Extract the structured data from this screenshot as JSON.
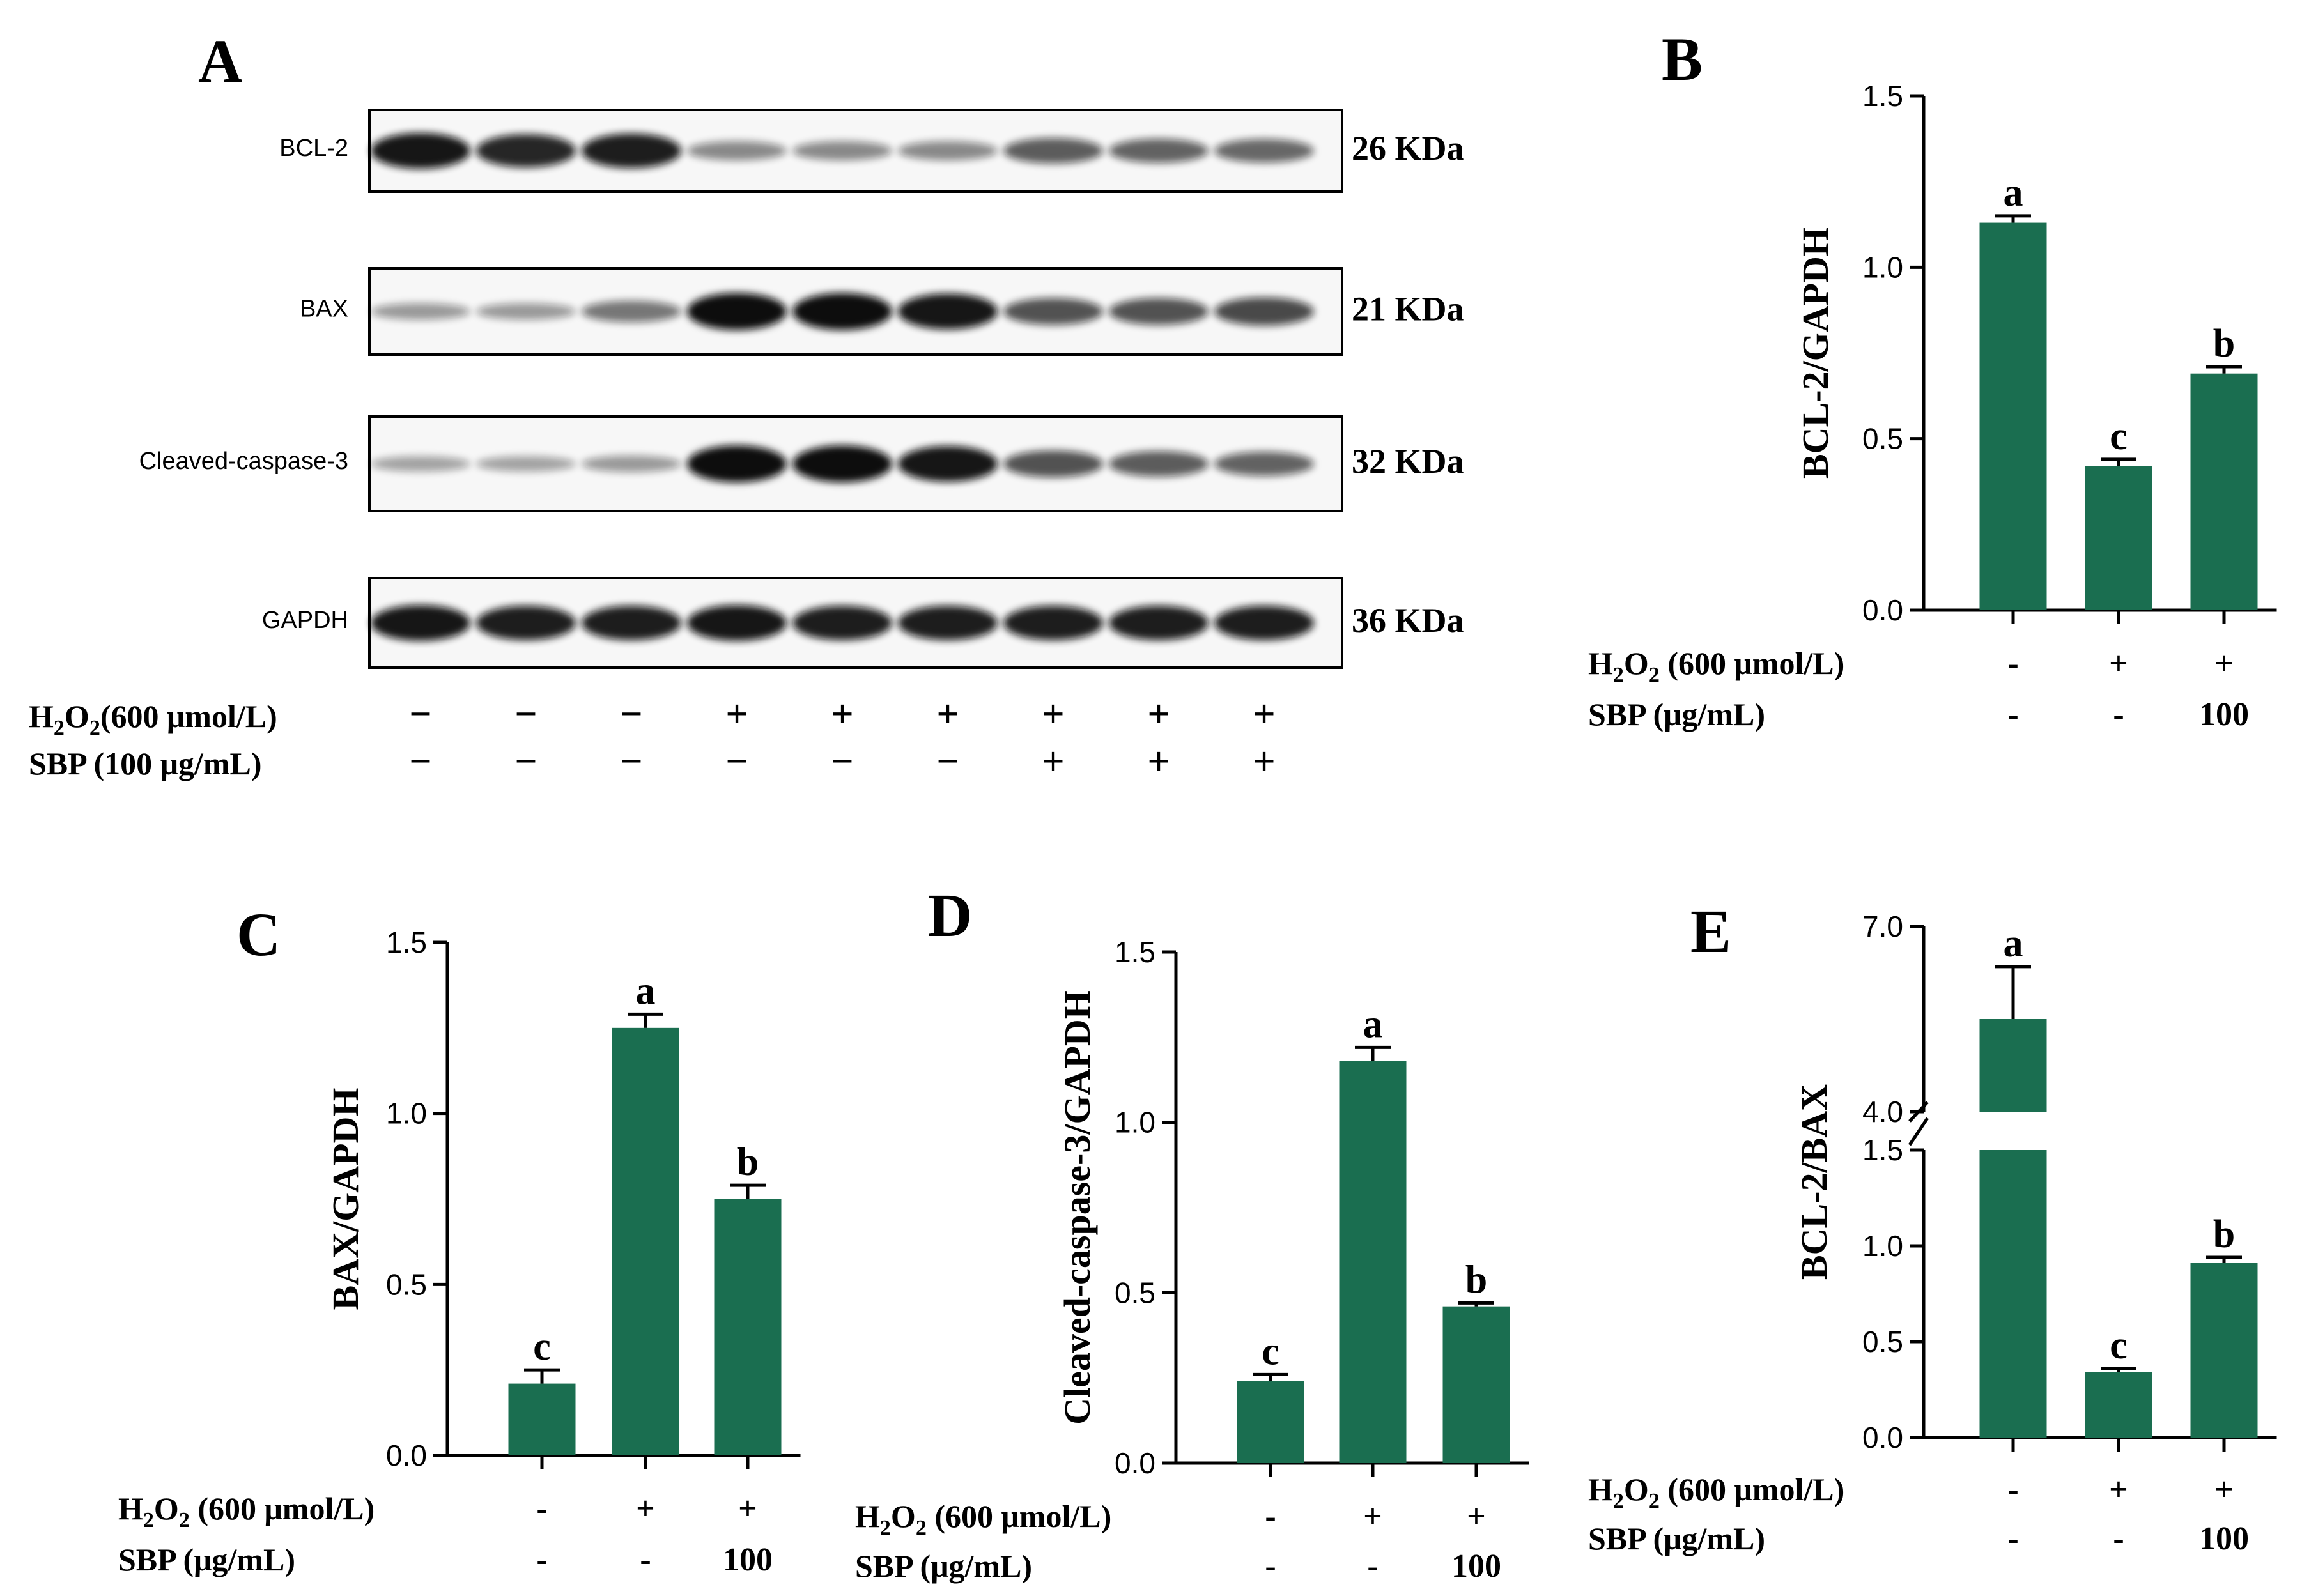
{
  "colors": {
    "bar": "#1a6e50",
    "axis": "#000000",
    "band": "#0a0a0a",
    "membrane": "#f7f7f7"
  },
  "panel_A": {
    "letter": "A",
    "blots": [
      {
        "label": "BCL-2",
        "kda": "26 KDa",
        "intensities": [
          0.95,
          0.85,
          0.9,
          0.3,
          0.3,
          0.3,
          0.55,
          0.5,
          0.48
        ]
      },
      {
        "label": "BAX",
        "kda": "21 KDa",
        "intensities": [
          0.2,
          0.2,
          0.4,
          1.0,
          1.0,
          0.95,
          0.6,
          0.6,
          0.65
        ]
      },
      {
        "label": "Cleaved-caspase-3",
        "kda": "32 KDa",
        "intensities": [
          0.15,
          0.15,
          0.2,
          1.0,
          1.0,
          0.95,
          0.6,
          0.55,
          0.5
        ]
      },
      {
        "label": "GAPDH",
        "kda": "36 KDa",
        "intensities": [
          0.95,
          0.9,
          0.9,
          0.95,
          0.9,
          0.9,
          0.9,
          0.9,
          0.9
        ]
      }
    ],
    "treatment_rows": [
      {
        "label_main": "H",
        "label_sub1": "2",
        "label_mid": "O",
        "label_sub2": "2",
        "label_rest": "(600 μmol/L)",
        "marks": [
          "−",
          "−",
          "−",
          "+",
          "+",
          "+",
          "+",
          "+",
          "+"
        ]
      },
      {
        "label_main": "SBP (100 μg/mL)",
        "marks": [
          "−",
          "−",
          "−",
          "−",
          "−",
          "−",
          "+",
          "+",
          "+"
        ]
      }
    ]
  },
  "chart_data": [
    {
      "panel": "B",
      "type": "bar",
      "ylabel": "BCL-2/GAPDH",
      "ylim": [
        0,
        1.5
      ],
      "yticks": [
        "0.0",
        "0.5",
        "1.0",
        "1.5"
      ],
      "values": [
        1.13,
        0.42,
        0.69
      ],
      "errors": [
        0.02,
        0.02,
        0.02
      ],
      "letters": [
        "a",
        "c",
        "b"
      ],
      "h2o2_label": {
        "main": "H",
        "sub1": "2",
        "mid": "O",
        "sub2": "2",
        "rest": " (600 μmol/L)"
      },
      "sbp_label": "SBP  (μg/mL)",
      "h2o2_marks": [
        "-",
        "+",
        "+"
      ],
      "sbp_marks": [
        "-",
        "-",
        "100"
      ]
    },
    {
      "panel": "C",
      "type": "bar",
      "ylabel": "BAX/GAPDH",
      "ylim": [
        0,
        1.5
      ],
      "yticks": [
        "0.0",
        "0.5",
        "1.0",
        "1.5"
      ],
      "values": [
        0.21,
        1.25,
        0.75
      ],
      "errors": [
        0.04,
        0.04,
        0.04
      ],
      "letters": [
        "c",
        "a",
        "b"
      ],
      "h2o2_label": {
        "main": "H",
        "sub1": "2",
        "mid": "O",
        "sub2": "2",
        "rest": " (600 μmol/L)"
      },
      "sbp_label": "SBP  (μg/mL)",
      "h2o2_marks": [
        "-",
        "+",
        "+"
      ],
      "sbp_marks": [
        "-",
        "-",
        "100"
      ]
    },
    {
      "panel": "D",
      "type": "bar",
      "ylabel": "Cleaved-caspase-3/GAPDH",
      "ylim": [
        0,
        1.5
      ],
      "yticks": [
        "0.0",
        "0.5",
        "1.0",
        "1.5"
      ],
      "values": [
        0.24,
        1.18,
        0.46
      ],
      "errors": [
        0.02,
        0.04,
        0.01
      ],
      "letters": [
        "c",
        "a",
        "b"
      ],
      "h2o2_label": {
        "main": "H",
        "sub1": "2",
        "mid": "O",
        "sub2": "2",
        "rest": " (600 μmol/L)"
      },
      "sbp_label": "SBP  (μg/mL)",
      "h2o2_marks": [
        "-",
        "+",
        "+"
      ],
      "sbp_marks": [
        "-",
        "-",
        "100"
      ]
    },
    {
      "panel": "E",
      "type": "bar",
      "ylabel": "BCL-2/BAX",
      "ylim": [
        0,
        7.0
      ],
      "axis_break": [
        1.5,
        4.0
      ],
      "yticks": [
        "0.0",
        "0.5",
        "1.0",
        "1.5",
        "4.0",
        "7.0"
      ],
      "values": [
        5.5,
        0.34,
        0.91
      ],
      "errors": [
        0.85,
        0.02,
        0.03
      ],
      "letters": [
        "a",
        "c",
        "b"
      ],
      "h2o2_label": {
        "main": "H",
        "sub1": "2",
        "mid": "O",
        "sub2": "2",
        "rest": " (600 μmol/L)"
      },
      "sbp_label": "SBP  (μg/mL)",
      "h2o2_marks": [
        "-",
        "+",
        "+"
      ],
      "sbp_marks": [
        "-",
        "-",
        "100"
      ]
    }
  ]
}
